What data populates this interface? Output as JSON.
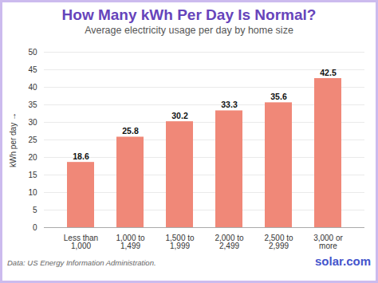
{
  "chart_data": {
    "type": "bar",
    "title": "How Many kWh Per Day Is Normal?",
    "subtitle": "Average electricity usage per day by home size",
    "ylabel": "kWh per day",
    "categories": [
      "Less than 1,000",
      "1,000 to 1,499",
      "1,500 to 1,999",
      "2,000 to 2,499",
      "2,500 to 2,999",
      "3,000 or more"
    ],
    "values": [
      18.6,
      25.8,
      30.2,
      33.3,
      35.6,
      42.5
    ],
    "color": "#F08878",
    "ylim": [
      0,
      50
    ],
    "yticks": [
      0,
      5,
      10,
      15,
      20,
      25,
      30,
      35,
      40,
      45,
      50
    ],
    "grid": true,
    "data_labels": true,
    "annotations": [
      "Data: US Energy Information Administration.",
      "solar.com"
    ]
  }
}
